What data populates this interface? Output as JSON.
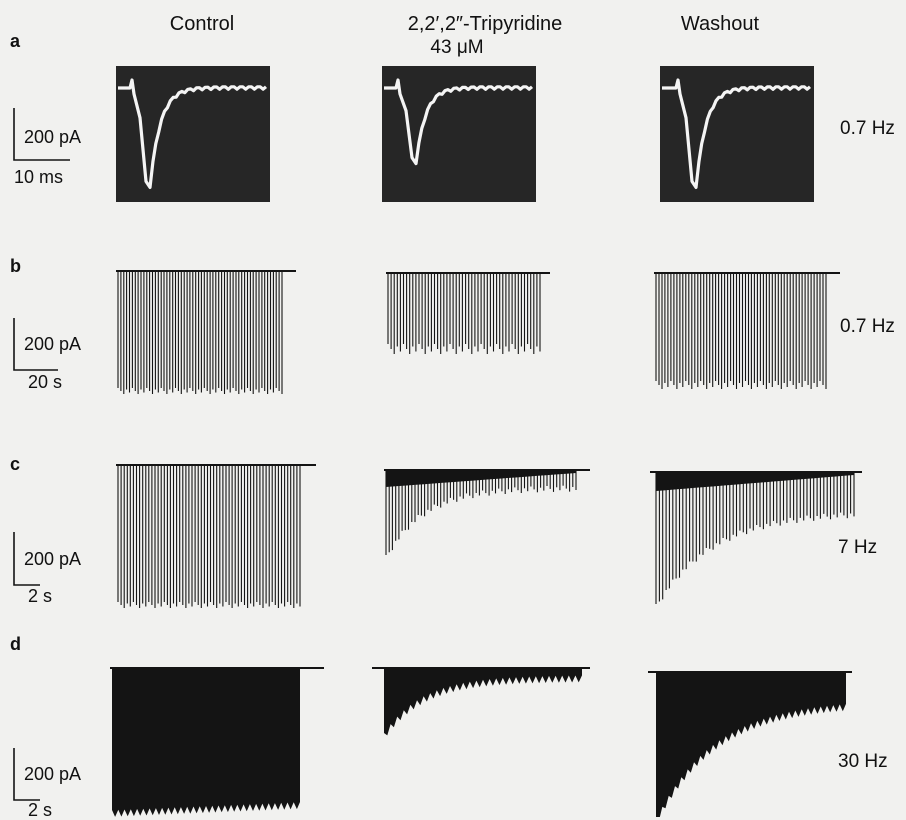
{
  "column_titles": {
    "control": "Control",
    "drug_line1": "2,2′,2″-Tripyridine",
    "drug_line2": "43 μM",
    "washout": "Washout"
  },
  "panels": [
    {
      "letter": "a",
      "frequency": "0.7 Hz",
      "scale_current": "200 pA",
      "scale_time": "10 ms"
    },
    {
      "letter": "b",
      "frequency": "0.7 Hz",
      "scale_current": "200 pA",
      "scale_time": "20 s"
    },
    {
      "letter": "c",
      "frequency": "7 Hz",
      "scale_current": "200 pA",
      "scale_time": "2 s"
    },
    {
      "letter": "d",
      "frequency": "30 Hz",
      "scale_current": "200 pA",
      "scale_time": "2 s"
    }
  ],
  "colors": {
    "ink": "#141414",
    "paper": "#f1f1ef",
    "scope_bg": "#262626",
    "scope_trace": "#f4f4f4"
  }
}
